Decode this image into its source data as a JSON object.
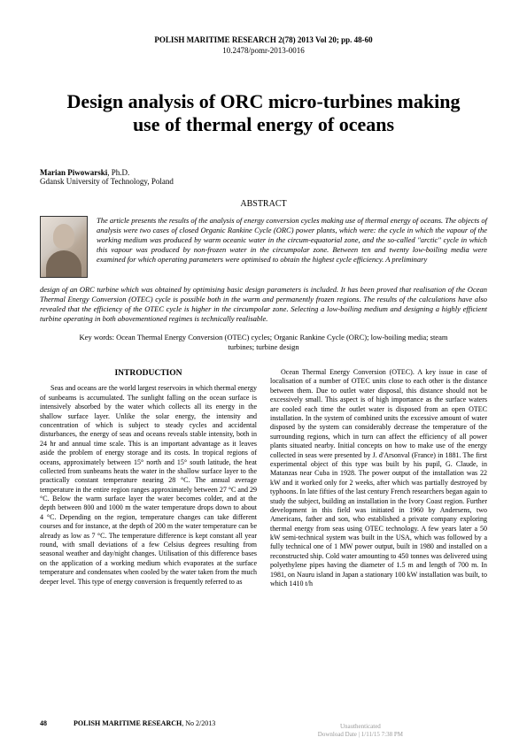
{
  "journal": {
    "header": "POLISH MARITIME RESEARCH 2(78) 2013 Vol 20; pp. 48-60",
    "doi": "10.2478/pomr-2013-0016",
    "footer_name": "POLISH MARITIME RESEARCH",
    "footer_issue": ", No 2/2013"
  },
  "title": "Design analysis of ORC micro-turbines making use of thermal energy of oceans",
  "author": {
    "name": "Marian Piwowarski",
    "degree": ", Ph.D.",
    "affiliation": "Gdansk University of Technology, Poland"
  },
  "abstract": {
    "heading": "ABSTRACT",
    "part1": "The article presents the results of the analysis of energy conversion cycles making use of thermal energy of oceans. The objects of analysis were two cases of closed Organic Rankine Cycle (ORC) power plants, which were: the cycle in which the vapour of the working medium was produced by warm oceanic water in the circum-equatorial zone, and the so-called \"arctic\" cycle in which this vapour was produced by non-frozen water in the circumpolar zone. Between ten and twenty low-boiling media were examined for which operating parameters were optimised to obtain the highest cycle efficiency. A preliminary",
    "part2": "design of an ORC turbine which was obtained by optimising basic design parameters is included. It has been proved that realisation of the Ocean Thermal Energy Conversion (OTEC) cycle is possible both in the warm and permanently frozen regions. The results of the calculations have also revealed that the efficiency of the OTEC cycle is higher in the circumpolar zone. Selecting a low-boiling medium and designing a highly efficient turbine operating in both abovementioned regimes is technically realisable."
  },
  "keywords": "Key words: Ocean Thermal Energy Conversion (OTEC) cycles; Organic Rankine Cycle (ORC); low-boiling media; steam turbines; turbine design",
  "sections": {
    "introduction_heading": "INTRODUCTION",
    "col1": "Seas and oceans are the world largest reservoirs in which thermal energy of sunbeams is accumulated. The sunlight falling on the ocean surface is intensively absorbed by the water which collects all its energy in the shallow surface layer. Unlike the solar energy, the intensity and concentration of which is subject to steady cycles and accidental disturbances, the energy of seas and oceans reveals stable intensity, both in 24 hr and annual time scale. This is an important advantage as it leaves aside the problem of energy storage and its costs. In tropical regions of oceans, approximately between 15° north and 15° south latitude, the heat collected from sunbeams heats the water in the shallow surface layer to the practically constant temperature nearing 28 °C. The annual average temperature in the entire region ranges approximately between 27 °C and 29 °C. Below the warm surface layer the water becomes colder, and at the depth between 800 and 1000 m the water temperature drops down to about 4 °C. Depending on the region, temperature changes can take different courses and for instance, at the depth of 200 m the water temperature can be already as low as 7 °C. The temperature difference is kept constant all year round, with small deviations of a few Celsius degrees resulting from seasonal weather and day/night changes. Utilisation of this difference bases on the application of a working medium which evaporates at the surface temperature and condensates when cooled by the water taken from the much deeper level. This type of energy conversion is frequently referred to as",
    "col2": "Ocean Thermal Energy Conversion (OTEC). A key issue in case of localisation of a number of OTEC units close to each other is the distance between them. Due to outlet water disposal, this distance should not be excessively small. This aspect is of high importance as the surface waters are cooled each time the outlet water is disposed from an open OTEC installation. In the system of combined units the excessive amount of water disposed by the system can considerably decrease the temperature of the surrounding regions, which in turn can affect the efficiency of all power plants situated nearby. Initial concepts on how to make use of the energy collected in seas were presented by J. d'Arsonval (France) in 1881. The first experimental object of this type was built by his pupil, G. Claude, in Matanzas near Cuba in 1928. The power output of the installation was 22 kW and it worked only for 2 weeks, after which was partially destroyed by typhoons. In late fifties of the last century French researchers began again to study the subject, building an installation in the Ivory Coast region. Further development in this field was initiated in 1960 by Andersens, two Americans, father and son, who established a private company exploring thermal energy from seas using OTEC technology. A few years later a 50 kW semi-technical system was built in the USA, which was followed by a fully technical one of 1 MW power output, built in 1980 and installed on a reconstructed ship. Cold water amounting to 450 tonnes was delivered using polyethylene pipes having the diameter of 1.5 m and length of 700 m. In 1981, on Nauru island in Japan a stationary 100 kW installation was built, to which 1410 t/h"
  },
  "page": "48",
  "watermark": {
    "line1": "Unauthenticated",
    "line2": "Download Date | 1/11/15 7:38 PM"
  }
}
